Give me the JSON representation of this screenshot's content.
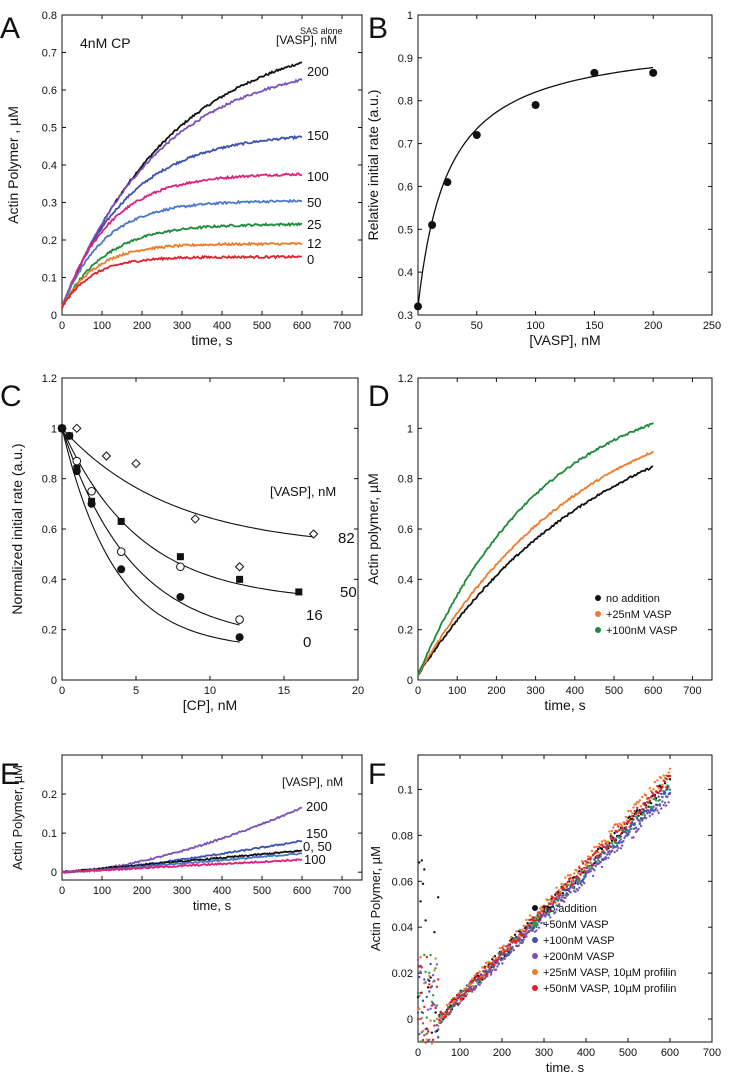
{
  "figure": {
    "panels": {
      "A": {
        "letter": "A",
        "cp_note": "4nM CP",
        "legend_title": "[VASP], nM"
      },
      "B": {
        "letter": "B"
      },
      "C": {
        "letter": "C",
        "legend_title": "[VASP], nM"
      },
      "D": {
        "letter": "D"
      },
      "E": {
        "letter": "E",
        "legend_title": "[VASP], nM"
      },
      "F": {
        "letter": "F"
      }
    }
  },
  "chart_data": [
    {
      "id": "A",
      "type": "line",
      "title": "4nM CP",
      "xlabel": "time, s",
      "ylabel": "Actin Polymer , µM",
      "xlim": [
        0,
        750
      ],
      "ylim": [
        0,
        0.8
      ],
      "xticks": [
        0,
        100,
        200,
        300,
        400,
        500,
        600,
        700
      ],
      "yticks": [
        0,
        0.1,
        0.2,
        0.3,
        0.4,
        0.5,
        0.6,
        0.7,
        0.8
      ],
      "legend_title": "[VASP], nM",
      "series": [
        {
          "name": "SAS alone",
          "label": "SAS alone",
          "color": "#111111",
          "plateau": 0.76,
          "tau": 280
        },
        {
          "name": "200",
          "label": "200",
          "color": "#7b52b8",
          "plateau": 0.685,
          "tau": 245
        },
        {
          "name": "150",
          "label": "150",
          "color": "#3d52b0",
          "plateau": 0.487,
          "tau": 165
        },
        {
          "name": "100",
          "label": "100",
          "color": "#e0207a",
          "plateau": 0.378,
          "tau": 120
        },
        {
          "name": "50",
          "label": "50",
          "color": "#4a78c8",
          "plateau": 0.305,
          "tau": 105
        },
        {
          "name": "25",
          "label": "25",
          "color": "#1f8a3c",
          "plateau": 0.243,
          "tau": 110
        },
        {
          "name": "12",
          "label": "12",
          "color": "#f07a2a",
          "plateau": 0.19,
          "tau": 85
        },
        {
          "name": "0",
          "label": "0",
          "color": "#e02030",
          "plateau": 0.155,
          "tau": 75
        }
      ]
    },
    {
      "id": "B",
      "type": "scatter",
      "xlabel": "[VASP], nM",
      "ylabel": "Relative initial rate (a.u.)",
      "xlim": [
        0,
        250
      ],
      "ylim": [
        0.3,
        1
      ],
      "xticks": [
        0,
        50,
        100,
        150,
        200,
        250
      ],
      "yticks": [
        0.3,
        0.4,
        0.5,
        0.6,
        0.7,
        0.8,
        0.9,
        1
      ],
      "x": [
        0,
        12,
        25,
        50,
        100,
        150,
        200
      ],
      "y": [
        0.32,
        0.51,
        0.61,
        0.72,
        0.79,
        0.865,
        0.865
      ],
      "fit": {
        "base": 0.32,
        "amplitude": 0.63,
        "k": 26
      }
    },
    {
      "id": "C",
      "type": "scatter",
      "xlabel": "[CP], nM",
      "ylabel": "Normalized initial rate (a.u.)",
      "xlim": [
        0,
        20
      ],
      "ylim": [
        0,
        1.2
      ],
      "xticks": [
        0,
        5,
        10,
        15,
        20
      ],
      "yticks": [
        0,
        0.2,
        0.4,
        0.6,
        0.8,
        1,
        1.2
      ],
      "legend_title": "[VASP], nM",
      "series": [
        {
          "name": "82",
          "label": "82",
          "marker": "diamond-open",
          "x": [
            0,
            1,
            3,
            5,
            9,
            12,
            17
          ],
          "y": [
            1,
            1,
            0.89,
            0.86,
            0.64,
            0.45,
            0.58
          ],
          "fit": {
            "plateau": 0.52,
            "k": 0.135
          }
        },
        {
          "name": "50",
          "label": "50",
          "marker": "square-filled",
          "x": [
            0,
            0.5,
            1,
            2,
            4,
            8,
            12,
            16
          ],
          "y": [
            1,
            0.97,
            0.84,
            0.71,
            0.63,
            0.49,
            0.4,
            0.35
          ],
          "fit": {
            "plateau": 0.31,
            "k": 0.19
          }
        },
        {
          "name": "16",
          "label": "16",
          "marker": "circle-open",
          "x": [
            0,
            1,
            2,
            4,
            8,
            12
          ],
          "y": [
            1,
            0.87,
            0.75,
            0.51,
            0.45,
            0.24
          ],
          "fit": {
            "plateau": 0.15,
            "k": 0.21
          }
        },
        {
          "name": "0",
          "label": "0",
          "marker": "circle-filled",
          "x": [
            0,
            0.5,
            1,
            2,
            4,
            8,
            12
          ],
          "y": [
            1,
            0.97,
            0.83,
            0.7,
            0.44,
            0.33,
            0.17
          ],
          "fit": {
            "plateau": 0.12,
            "k": 0.28
          }
        }
      ]
    },
    {
      "id": "D",
      "type": "line",
      "xlabel": "time, s",
      "ylabel": "Actin polymer, µM",
      "xlim": [
        0,
        750
      ],
      "ylim": [
        0,
        1.2
      ],
      "xticks": [
        0,
        100,
        200,
        300,
        400,
        500,
        600,
        700
      ],
      "yticks": [
        0,
        0.2,
        0.4,
        0.6,
        0.8,
        1,
        1.2
      ],
      "legend": [
        "no addition",
        "+25nM VASP",
        "+100nM VASP"
      ],
      "series": [
        {
          "name": "no addition",
          "color": "#111111",
          "plateau": 1.18,
          "tau": 480
        },
        {
          "name": "+25nM VASP",
          "color": "#f07a2a",
          "plateau": 1.2,
          "tau": 430
        },
        {
          "name": "+100nM VASP",
          "color": "#1f8a3c",
          "plateau": 1.2,
          "tau": 320
        }
      ]
    },
    {
      "id": "E",
      "type": "line",
      "xlabel": "time, s",
      "ylabel": "Actin Polymer, µM",
      "xlim": [
        0,
        750
      ],
      "ylim": [
        -0.02,
        0.3
      ],
      "xticks": [
        0,
        100,
        200,
        300,
        400,
        500,
        600,
        700
      ],
      "yticks": [
        0,
        0.1,
        0.2
      ],
      "legend_title": "[VASP], nM",
      "series": [
        {
          "name": "200",
          "label": "200",
          "color": "#7b52b8",
          "end": 0.165,
          "shape": 1.6
        },
        {
          "name": "150",
          "label": "150",
          "color": "#3d52b0",
          "end": 0.08,
          "shape": 1.3
        },
        {
          "name": "0, 50",
          "label": "0, 50",
          "color": "#111111",
          "end": 0.055,
          "shape": 1
        },
        {
          "name": "50",
          "label": "",
          "color": "#4a78c8",
          "end": 0.048,
          "shape": 1.1
        },
        {
          "name": "100",
          "label": "100",
          "color": "#e0207a",
          "end": 0.032,
          "shape": 1
        }
      ]
    },
    {
      "id": "F",
      "type": "scatter",
      "xlabel": "time, s",
      "ylabel": "Actin Polymer, µM",
      "xlim": [
        0,
        700
      ],
      "ylim": [
        -0.01,
        0.115
      ],
      "xticks": [
        0,
        100,
        200,
        300,
        400,
        500,
        600,
        700
      ],
      "yticks": [
        0,
        0.02,
        0.04,
        0.06,
        0.08,
        0.1
      ],
      "legend": [
        "no addition",
        "+50nM VASP",
        "+100nM VASP",
        "+200nM VASP",
        "+25nM VASP, 10µM profilin",
        "+50nM VASP, 10µM profilin"
      ],
      "series": [
        {
          "name": "no addition",
          "color": "#111111",
          "end": 0.104
        },
        {
          "name": "+50nM VASP",
          "color": "#2a9a4a",
          "end": 0.101
        },
        {
          "name": "+100nM VASP",
          "color": "#3d52b0",
          "end": 0.1
        },
        {
          "name": "+200nM VASP",
          "color": "#7b52b8",
          "end": 0.097
        },
        {
          "name": "+25nM VASP, 10µM profilin",
          "color": "#f07a2a",
          "end": 0.108
        },
        {
          "name": "+50nM VASP, 10µM profilin",
          "color": "#e02030",
          "end": 0.105
        }
      ]
    }
  ]
}
